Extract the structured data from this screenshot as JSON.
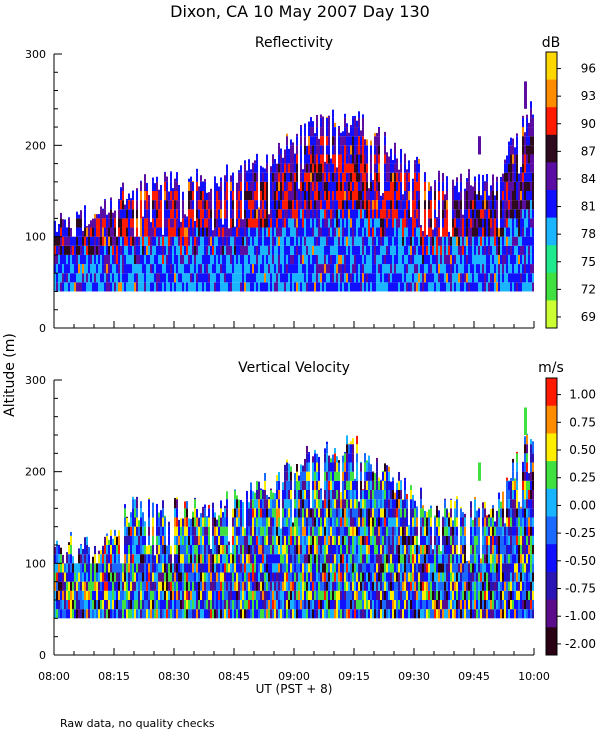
{
  "title": "Dixon, CA 10 May 2007  Day 130",
  "ylabel": "Altitude (m)",
  "xlabel": "UT  (PST + 8)",
  "footnote": "Raw data, no quality checks",
  "x_ticks": [
    "08:00",
    "08:15",
    "08:30",
    "08:45",
    "09:00",
    "09:15",
    "09:30",
    "09:45",
    "10:00"
  ],
  "chart_data": [
    {
      "type": "heatmap",
      "title": "Reflectivity",
      "x_range_minutes": [
        0,
        120
      ],
      "ylim": [
        0,
        300
      ],
      "y_ticks": [
        0,
        100,
        200,
        300
      ],
      "colorbar": {
        "unit": "dB",
        "ticks": [
          "96",
          "93",
          "90",
          "87",
          "84",
          "81",
          "78",
          "75",
          "72",
          "69"
        ],
        "colors": [
          "#ffd700",
          "#ff8c00",
          "#ff1a00",
          "#2e0a1e",
          "#5b0ca2",
          "#1010ff",
          "#1ab4ff",
          "#20e88c",
          "#40e040",
          "#ccff33"
        ],
        "seed_value": 1
      },
      "cloud_top_profile": [
        [
          0,
          120
        ],
        [
          10,
          120
        ],
        [
          20,
          160
        ],
        [
          40,
          160
        ],
        [
          55,
          190
        ],
        [
          65,
          220
        ],
        [
          75,
          230
        ],
        [
          85,
          190
        ],
        [
          95,
          160
        ],
        [
          110,
          160
        ],
        [
          120,
          250
        ]
      ],
      "cloud_base_m": 40
    },
    {
      "type": "heatmap",
      "title": "Vertical Velocity",
      "x_range_minutes": [
        0,
        120
      ],
      "ylim": [
        0,
        300
      ],
      "y_ticks": [
        0,
        100,
        200,
        300
      ],
      "colorbar": {
        "unit": "m/s",
        "ticks": [
          "1.00",
          "0.75",
          "0.50",
          "0.25",
          "0.00",
          "-0.25",
          "-0.50",
          "-0.75",
          "-1.00",
          "-2.00"
        ],
        "colors": [
          "#ff1a00",
          "#ff8c00",
          "#ffee00",
          "#40e040",
          "#19b4ff",
          "#1a6aff",
          "#1010ff",
          "#2b14b4",
          "#5b0c8a",
          "#2a0014"
        ],
        "seed_value": 2
      },
      "cloud_top_profile": [
        [
          0,
          120
        ],
        [
          10,
          120
        ],
        [
          20,
          160
        ],
        [
          40,
          160
        ],
        [
          55,
          190
        ],
        [
          65,
          220
        ],
        [
          75,
          230
        ],
        [
          85,
          190
        ],
        [
          95,
          160
        ],
        [
          110,
          160
        ],
        [
          120,
          250
        ]
      ],
      "cloud_base_m": 40
    }
  ]
}
